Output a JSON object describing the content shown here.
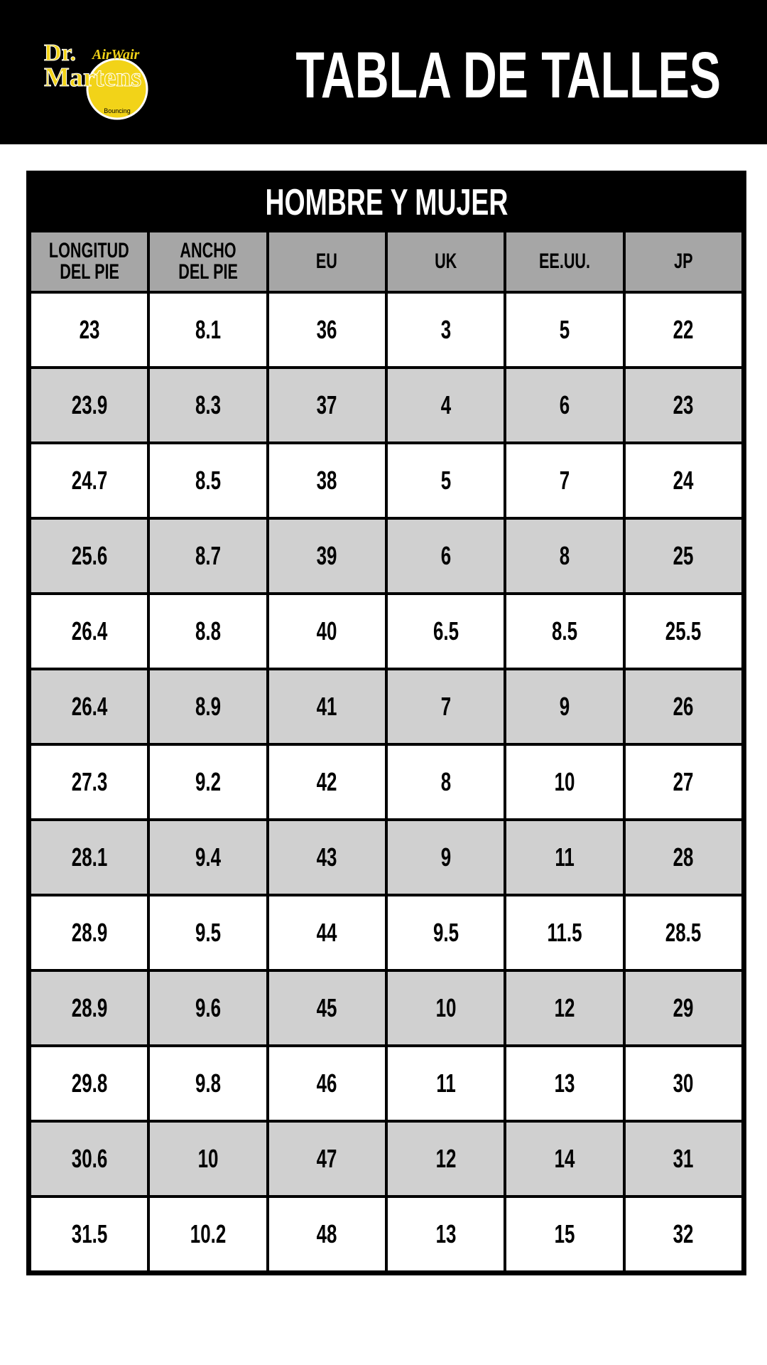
{
  "header": {
    "logo": {
      "brand_top": "Dr.",
      "brand": "Martens",
      "tagline": "AirWair",
      "sub": "Bouncing"
    },
    "title": "TABLA DE TALLES"
  },
  "table": {
    "title": "HOMBRE Y MUJER",
    "columns": [
      [
        "LONGITUD",
        "DEL PIE"
      ],
      [
        "ANCHO",
        "DEL PIE"
      ],
      [
        "EU"
      ],
      [
        "UK"
      ],
      [
        "EE.UU."
      ],
      [
        "JP"
      ]
    ],
    "rows": [
      [
        23,
        8.1,
        36,
        3,
        5,
        22
      ],
      [
        23.9,
        8.3,
        37,
        4,
        6,
        23
      ],
      [
        24.7,
        8.5,
        38,
        5,
        7,
        24
      ],
      [
        25.6,
        8.7,
        39,
        6,
        8,
        25
      ],
      [
        26.4,
        8.8,
        40,
        6.5,
        8.5,
        25.5
      ],
      [
        26.4,
        8.9,
        41,
        7,
        9,
        26
      ],
      [
        27.3,
        9.2,
        42,
        8,
        10,
        27
      ],
      [
        28.1,
        9.4,
        43,
        9,
        11,
        28
      ],
      [
        28.9,
        9.5,
        44,
        9.5,
        11.5,
        28.5
      ],
      [
        28.9,
        9.6,
        45,
        10,
        12,
        29
      ],
      [
        29.8,
        9.8,
        46,
        11,
        13,
        30
      ],
      [
        30.6,
        10,
        47,
        12,
        14,
        31
      ],
      [
        31.5,
        10.2,
        48,
        13,
        15,
        32
      ]
    ]
  }
}
